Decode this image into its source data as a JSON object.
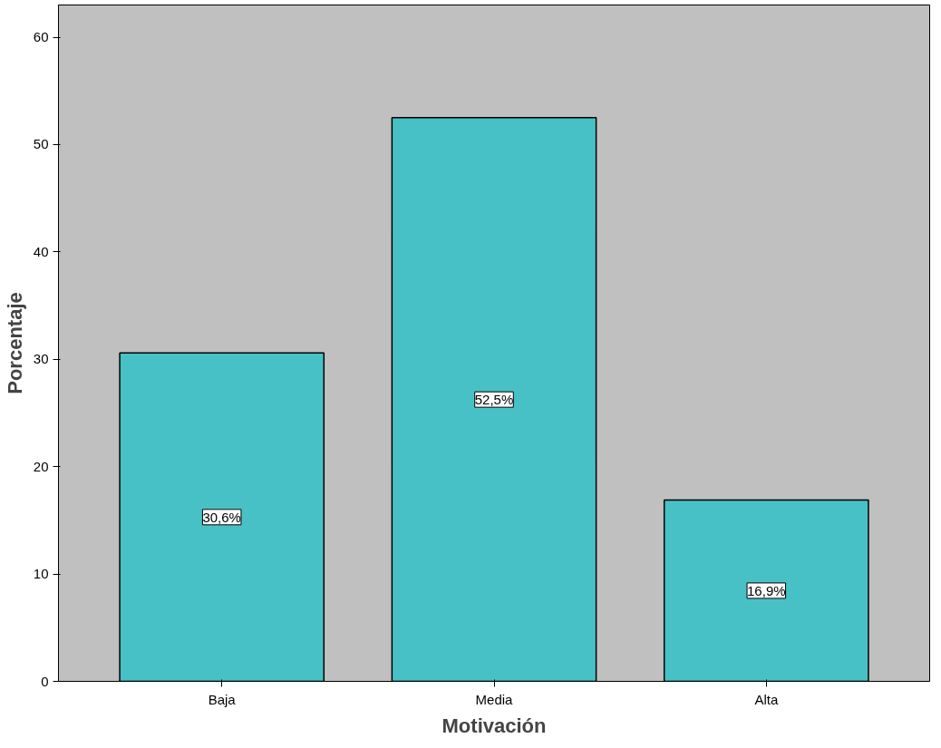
{
  "chart_data": {
    "type": "bar",
    "xlabel": "Motivación",
    "ylabel": "Porcentaje",
    "categories": [
      "Baja",
      "Media",
      "Alta"
    ],
    "values": [
      30.6,
      52.5,
      16.9
    ],
    "value_labels": [
      "30,6%",
      "52,5%",
      "16,9%"
    ],
    "color": "#48c1c6",
    "ylim": [
      0,
      63
    ],
    "yticks": [
      0,
      10,
      20,
      30,
      40,
      50,
      60
    ],
    "grid": false
  }
}
